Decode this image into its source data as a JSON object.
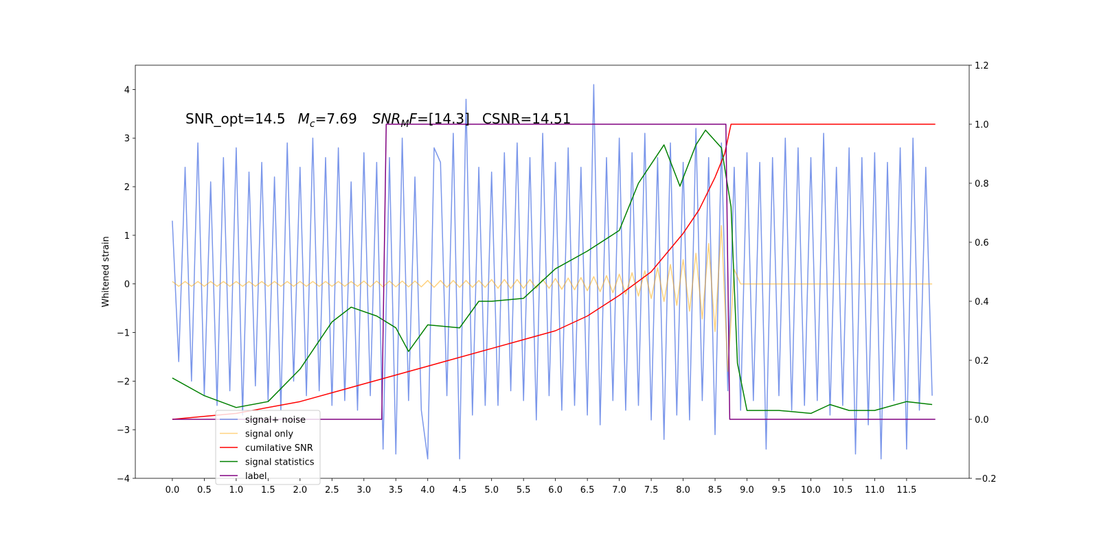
{
  "chart_data": {
    "type": "line",
    "ylabel": "Whitened strain",
    "annotation": [
      "SNR_opt=14.5",
      "M",
      "c",
      "=7.69",
      "SNR",
      "M",
      "F",
      "=[14.3]",
      "CSNR=14.51"
    ],
    "xlim": [
      -0.58,
      12.48
    ],
    "ylim": [
      -4.0,
      4.5
    ],
    "y2lim": [
      -0.2,
      1.2
    ],
    "xticks": [
      {
        "value": 0,
        "label": "0.0"
      },
      {
        "value": 0.5,
        "label": "0.5"
      },
      {
        "value": 1,
        "label": "1.0"
      },
      {
        "value": 1.5,
        "label": "1.5"
      },
      {
        "value": 2,
        "label": "2.0"
      },
      {
        "value": 2.5,
        "label": "2.5"
      },
      {
        "value": 3,
        "label": "3.0"
      },
      {
        "value": 3.5,
        "label": "3.5"
      },
      {
        "value": 4,
        "label": "4.0"
      },
      {
        "value": 4.5,
        "label": "4.5"
      },
      {
        "value": 5,
        "label": "5.0"
      },
      {
        "value": 5.5,
        "label": "5.5"
      },
      {
        "value": 6,
        "label": "6.0"
      },
      {
        "value": 6.5,
        "label": "6.5"
      },
      {
        "value": 7,
        "label": "7.0"
      },
      {
        "value": 7.5,
        "label": "7.5"
      },
      {
        "value": 8,
        "label": "8.0"
      },
      {
        "value": 8.5,
        "label": "8.5"
      },
      {
        "value": 9,
        "label": "9.0"
      },
      {
        "value": 9.5,
        "label": "9.5"
      },
      {
        "value": 10,
        "label": "10.0"
      },
      {
        "value": 10.5,
        "label": "10.5"
      },
      {
        "value": 11,
        "label": "11.0"
      },
      {
        "value": 11.5,
        "label": "11.5"
      }
    ],
    "yticks": [
      {
        "value": -4,
        "label": "−4"
      },
      {
        "value": -3,
        "label": "−3"
      },
      {
        "value": -2,
        "label": "−2"
      },
      {
        "value": -1,
        "label": "−1"
      },
      0,
      1,
      2,
      3,
      4
    ],
    "y2ticks": [
      {
        "value": -0.2,
        "label": "−0.2"
      },
      {
        "value": 0,
        "label": "0.0"
      },
      0.2,
      0.4,
      0.6,
      0.8,
      {
        "value": 1,
        "label": "1.0"
      },
      1.2
    ],
    "series": [
      {
        "name": "signal+ noise",
        "color": "#4169e1",
        "alpha": 0.7,
        "x": [
          0,
          0.1,
          0.2,
          0.3,
          0.4,
          0.5,
          0.6,
          0.7,
          0.8,
          0.9,
          1,
          1.1,
          1.2,
          1.3,
          1.4,
          1.5,
          1.6,
          1.7,
          1.8,
          1.9,
          2,
          2.1,
          2.2,
          2.3,
          2.4,
          2.5,
          2.6,
          2.7,
          2.8,
          2.9,
          3,
          3.1,
          3.2,
          3.3,
          3.4,
          3.5,
          3.6,
          3.7,
          3.8,
          3.9,
          4,
          4.1,
          4.2,
          4.3,
          4.4,
          4.5,
          4.6,
          4.7,
          4.8,
          4.9,
          5,
          5.1,
          5.2,
          5.3,
          5.4,
          5.5,
          5.6,
          5.7,
          5.8,
          5.9,
          6,
          6.1,
          6.2,
          6.3,
          6.4,
          6.5,
          6.6,
          6.7,
          6.8,
          6.9,
          7,
          7.1,
          7.2,
          7.3,
          7.4,
          7.5,
          7.6,
          7.7,
          7.8,
          7.9,
          8,
          8.1,
          8.2,
          8.3,
          8.4,
          8.5,
          8.6,
          8.7,
          8.8,
          8.9,
          9,
          9.1,
          9.2,
          9.3,
          9.4,
          9.5,
          9.6,
          9.7,
          9.8,
          9.9,
          10,
          10.1,
          10.2,
          10.3,
          10.4,
          10.5,
          10.6,
          10.7,
          10.8,
          10.9,
          11,
          11.1,
          11.2,
          11.3,
          11.4,
          11.5,
          11.6,
          11.7,
          11.8,
          11.9
        ],
        "values": [
          1.3,
          -1.6,
          2.4,
          -2.0,
          2.9,
          -2.3,
          2.1,
          -2.5,
          2.6,
          -2.2,
          2.8,
          -2.7,
          2.3,
          -2.1,
          2.5,
          -2.4,
          2.2,
          -2.6,
          2.9,
          -2.0,
          2.4,
          -2.3,
          3.0,
          -2.2,
          2.6,
          -2.5,
          2.8,
          -2.4,
          2.1,
          -2.6,
          2.7,
          -2.3,
          2.5,
          -3.4,
          2.6,
          -3.5,
          3.0,
          -2.4,
          2.2,
          -2.6,
          -3.6,
          2.8,
          2.5,
          -2.3,
          3.1,
          -3.6,
          3.8,
          -2.7,
          2.4,
          -2.5,
          2.3,
          -2.5,
          2.7,
          -2.2,
          2.9,
          -2.4,
          2.6,
          -2.8,
          3.1,
          -2.3,
          2.5,
          -2.6,
          2.8,
          -2.5,
          2.4,
          -2.7,
          4.1,
          -2.9,
          2.6,
          -2.4,
          3.0,
          -2.6,
          2.7,
          -2.5,
          3.1,
          -2.8,
          2.6,
          -3.2,
          2.9,
          -2.7,
          2.5,
          -2.8,
          3.2,
          -2.4,
          2.6,
          -3.1,
          2.9,
          -2.2,
          2.4,
          -2.6,
          2.7,
          -2.4,
          2.5,
          -3.4,
          2.6,
          -2.3,
          3.0,
          -2.6,
          2.8,
          -2.5,
          2.6,
          -2.4,
          3.1,
          -2.7,
          2.4,
          -2.5,
          2.8,
          -3.5,
          2.6,
          -2.9,
          2.7,
          -3.6,
          2.5,
          -2.4,
          2.8,
          -3.4,
          3.0,
          -2.6,
          2.4,
          -2.3
        ]
      },
      {
        "name": "signal only",
        "color": "#ffa500",
        "alpha": 0.5,
        "x": [
          0,
          0.1,
          0.2,
          0.3,
          0.4,
          0.5,
          0.6,
          0.7,
          0.8,
          0.9,
          1,
          1.1,
          1.2,
          1.3,
          1.4,
          1.5,
          1.6,
          1.7,
          1.8,
          1.9,
          2,
          2.1,
          2.2,
          2.3,
          2.4,
          2.5,
          2.6,
          2.7,
          2.8,
          2.9,
          3,
          3.1,
          3.2,
          3.3,
          3.4,
          3.5,
          3.6,
          3.7,
          3.8,
          3.9,
          4,
          4.1,
          4.2,
          4.3,
          4.4,
          4.5,
          4.6,
          4.7,
          4.8,
          4.9,
          5,
          5.1,
          5.2,
          5.3,
          5.4,
          5.5,
          5.6,
          5.7,
          5.8,
          5.9,
          6,
          6.1,
          6.2,
          6.3,
          6.4,
          6.5,
          6.6,
          6.7,
          6.8,
          6.9,
          7,
          7.1,
          7.2,
          7.3,
          7.4,
          7.5,
          7.6,
          7.7,
          7.8,
          7.9,
          8,
          8.1,
          8.2,
          8.3,
          8.4,
          8.5,
          8.6,
          8.7,
          8.8,
          8.9,
          9,
          9.1,
          9.2,
          9.3,
          9.4,
          9.5,
          9.6,
          9.7,
          9.8,
          9.9,
          10,
          10.1,
          10.2,
          10.3,
          10.4,
          10.5,
          10.6,
          10.7,
          10.8,
          10.9,
          11,
          11.1,
          11.2,
          11.3,
          11.4,
          11.5,
          11.6,
          11.7,
          11.8,
          11.9
        ],
        "values": [
          0.05,
          -0.05,
          0.05,
          -0.05,
          0.05,
          -0.05,
          0.05,
          -0.05,
          0.05,
          -0.05,
          0.05,
          -0.05,
          0.05,
          -0.05,
          0.05,
          -0.05,
          0.05,
          -0.05,
          0.05,
          -0.05,
          0.05,
          -0.05,
          0.05,
          -0.05,
          0.05,
          -0.05,
          0.05,
          -0.05,
          0.05,
          -0.05,
          0.06,
          -0.06,
          0.06,
          -0.06,
          0.06,
          -0.06,
          0.06,
          -0.06,
          0.06,
          -0.06,
          0.07,
          -0.07,
          0.07,
          -0.07,
          0.07,
          -0.07,
          0.07,
          -0.07,
          0.07,
          -0.07,
          0.09,
          -0.09,
          0.09,
          -0.09,
          0.09,
          -0.09,
          0.09,
          -0.09,
          0.09,
          -0.09,
          0.11,
          -0.11,
          0.12,
          -0.12,
          0.13,
          -0.14,
          0.15,
          -0.16,
          0.17,
          -0.18,
          0.2,
          -0.21,
          0.23,
          -0.25,
          0.27,
          -0.3,
          0.33,
          -0.36,
          0.4,
          -0.44,
          0.5,
          -0.56,
          0.63,
          -0.72,
          0.83,
          -0.98,
          1.2,
          -1.8,
          0.3,
          0,
          0,
          0,
          0,
          0,
          0,
          0,
          0,
          0,
          0,
          0,
          0,
          0,
          0,
          0,
          0,
          0,
          0,
          0,
          0,
          0,
          0,
          0,
          0,
          0,
          0,
          0,
          0,
          0,
          0,
          0
        ]
      },
      {
        "name": "cumilative SNR",
        "color": "#ff0000",
        "axis": "y2",
        "x": [
          0,
          1,
          2,
          3,
          4,
          5,
          6,
          6.5,
          7,
          7.5,
          8,
          8.25,
          8.5,
          8.65,
          8.75,
          11.95
        ],
        "values": [
          0,
          0.02,
          0.06,
          0.12,
          0.18,
          0.24,
          0.3,
          0.35,
          0.42,
          0.5,
          0.63,
          0.71,
          0.82,
          0.9,
          1.0,
          1.0
        ]
      },
      {
        "name": "signal statistics",
        "color": "#008000",
        "axis": "y2",
        "x": [
          0,
          0.5,
          1,
          1.5,
          2,
          2.5,
          2.8,
          3.2,
          3.5,
          3.7,
          4,
          4.5,
          4.8,
          5,
          5.5,
          6,
          6.5,
          7,
          7.3,
          7.7,
          7.95,
          8.2,
          8.35,
          8.6,
          8.75,
          8.85,
          9,
          9.5,
          10,
          10.3,
          10.6,
          11,
          11.5,
          11.9
        ],
        "values": [
          0.14,
          0.08,
          0.04,
          0.06,
          0.17,
          0.33,
          0.38,
          0.35,
          0.31,
          0.23,
          0.32,
          0.31,
          0.4,
          0.4,
          0.41,
          0.51,
          0.57,
          0.64,
          0.8,
          0.93,
          0.79,
          0.93,
          0.98,
          0.92,
          0.72,
          0.19,
          0.03,
          0.03,
          0.02,
          0.05,
          0.03,
          0.03,
          0.06,
          0.05
        ]
      },
      {
        "name": "label",
        "color": "#800080",
        "axis": "y2",
        "x": [
          0,
          3.28,
          3.35,
          8.67,
          8.73,
          11.95
        ],
        "values": [
          0,
          0,
          1,
          1,
          0,
          0
        ]
      }
    ]
  }
}
